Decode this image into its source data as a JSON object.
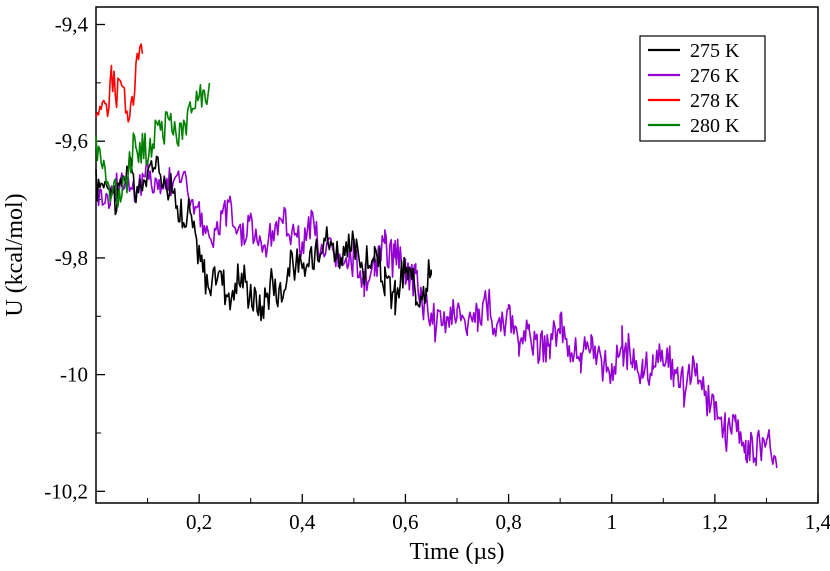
{
  "chart_data": {
    "type": "line",
    "xlabel": "Time (µs)",
    "ylabel": "U (kcal/mol)",
    "xlim": [
      0,
      1.4
    ],
    "ylim": [
      -10.22,
      -9.37
    ],
    "x_ticks": [
      {
        "v": 0.2,
        "label": "0,2"
      },
      {
        "v": 0.4,
        "label": "0,4"
      },
      {
        "v": 0.6,
        "label": "0,6"
      },
      {
        "v": 0.8,
        "label": "0,8"
      },
      {
        "v": 1.0,
        "label": "1"
      },
      {
        "v": 1.2,
        "label": "1,2"
      },
      {
        "v": 1.4,
        "label": "1,4"
      }
    ],
    "y_ticks": [
      {
        "v": -9.4,
        "label": "-9,4"
      },
      {
        "v": -9.6,
        "label": "-9,6"
      },
      {
        "v": -9.8,
        "label": "-9,8"
      },
      {
        "v": -10.0,
        "label": "-10"
      },
      {
        "v": -10.2,
        "label": "-10,2"
      }
    ],
    "grid": false,
    "legend_position": "top-right",
    "series": [
      {
        "name": "275 K",
        "color": "#000000",
        "x": [
          0.0,
          0.02,
          0.04,
          0.06,
          0.08,
          0.1,
          0.12,
          0.14,
          0.16,
          0.17,
          0.18,
          0.2,
          0.22,
          0.24,
          0.26,
          0.28,
          0.3,
          0.32,
          0.34,
          0.36,
          0.38,
          0.4,
          0.42,
          0.44,
          0.46,
          0.48,
          0.5,
          0.52,
          0.54,
          0.56,
          0.58,
          0.6,
          0.62,
          0.64,
          0.65
        ],
        "y": [
          -9.68,
          -9.66,
          -9.7,
          -9.64,
          -9.69,
          -9.66,
          -9.63,
          -9.68,
          -9.7,
          -9.75,
          -9.72,
          -9.8,
          -9.85,
          -9.82,
          -9.87,
          -9.83,
          -9.86,
          -9.89,
          -9.84,
          -9.86,
          -9.8,
          -9.83,
          -9.79,
          -9.76,
          -9.78,
          -9.8,
          -9.78,
          -9.82,
          -9.8,
          -9.84,
          -9.87,
          -9.82,
          -9.86,
          -9.84,
          -9.82
        ]
      },
      {
        "name": "276 K",
        "color": "#9400d3",
        "x": [
          0.0,
          0.02,
          0.04,
          0.06,
          0.08,
          0.1,
          0.12,
          0.14,
          0.16,
          0.18,
          0.2,
          0.22,
          0.24,
          0.26,
          0.28,
          0.3,
          0.32,
          0.34,
          0.36,
          0.38,
          0.4,
          0.42,
          0.44,
          0.46,
          0.48,
          0.5,
          0.52,
          0.54,
          0.56,
          0.58,
          0.6,
          0.62,
          0.64,
          0.66,
          0.68,
          0.7,
          0.72,
          0.74,
          0.76,
          0.78,
          0.8,
          0.82,
          0.84,
          0.86,
          0.88,
          0.9,
          0.92,
          0.94,
          0.96,
          0.98,
          1.0,
          1.02,
          1.04,
          1.06,
          1.08,
          1.1,
          1.12,
          1.14,
          1.16,
          1.18,
          1.2,
          1.22,
          1.24,
          1.26,
          1.28,
          1.3,
          1.32
        ],
        "y": [
          -9.68,
          -9.7,
          -9.68,
          -9.66,
          -9.69,
          -9.65,
          -9.68,
          -9.67,
          -9.65,
          -9.69,
          -9.72,
          -9.78,
          -9.74,
          -9.72,
          -9.76,
          -9.74,
          -9.78,
          -9.76,
          -9.73,
          -9.75,
          -9.78,
          -9.74,
          -9.8,
          -9.78,
          -9.82,
          -9.8,
          -9.84,
          -9.82,
          -9.78,
          -9.8,
          -9.82,
          -9.84,
          -9.88,
          -9.92,
          -9.9,
          -9.88,
          -9.92,
          -9.9,
          -9.88,
          -9.92,
          -9.9,
          -9.94,
          -9.92,
          -9.96,
          -9.94,
          -9.92,
          -9.96,
          -9.98,
          -9.95,
          -9.97,
          -10.0,
          -9.95,
          -9.98,
          -10.0,
          -9.98,
          -9.96,
          -10.0,
          -10.02,
          -10.0,
          -10.04,
          -10.06,
          -10.1,
          -10.08,
          -10.12,
          -10.14,
          -10.1,
          -10.16
        ]
      },
      {
        "name": "278 K",
        "color": "#ff0000",
        "x": [
          0.0,
          0.01,
          0.02,
          0.03,
          0.04,
          0.05,
          0.06,
          0.07,
          0.08,
          0.09
        ],
        "y": [
          -9.56,
          -9.53,
          -9.55,
          -9.48,
          -9.52,
          -9.5,
          -9.56,
          -9.53,
          -9.46,
          -9.45
        ]
      },
      {
        "name": "280 K",
        "color": "#008000",
        "x": [
          0.0,
          0.02,
          0.04,
          0.06,
          0.08,
          0.1,
          0.12,
          0.14,
          0.16,
          0.18,
          0.2,
          0.22
        ],
        "y": [
          -9.6,
          -9.66,
          -9.7,
          -9.65,
          -9.6,
          -9.62,
          -9.58,
          -9.56,
          -9.6,
          -9.55,
          -9.53,
          -9.5
        ]
      }
    ]
  }
}
